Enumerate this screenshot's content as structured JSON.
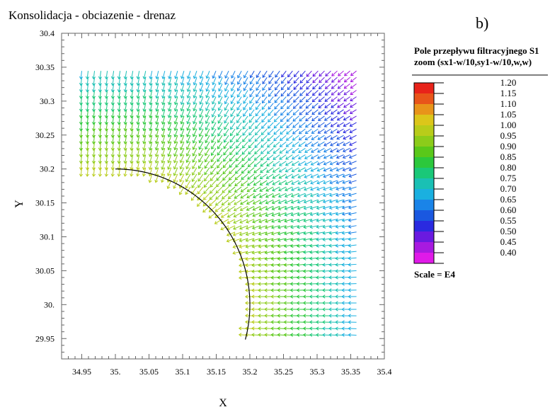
{
  "header": {
    "title": "Konsolidacja - obciazenie - drenaz",
    "panel_label": "b)"
  },
  "legend": {
    "title_line1": "Pole przepływu filtracyjnego S1",
    "title_line2": "zoom (sx1-w/10,sy1-w/10,w,w)",
    "levels": [
      "1.20",
      "1.15",
      "1.10",
      "1.05",
      "1.00",
      "0.95",
      "0.90",
      "0.85",
      "0.80",
      "0.75",
      "0.70",
      "0.65",
      "0.60",
      "0.55",
      "0.50",
      "0.45",
      "0.40"
    ],
    "colors": [
      "#e8231a",
      "#e8551a",
      "#e8941a",
      "#dcc61a",
      "#b8cc1a",
      "#8ccc1a",
      "#5ac81a",
      "#2cc83c",
      "#1ac878",
      "#1ac0b4",
      "#1ab0e0",
      "#1a84e8",
      "#1a58e0",
      "#2a2ae0",
      "#6a1ae0",
      "#a81ae0",
      "#e01ae8"
    ],
    "scale_text": "Scale = E4"
  },
  "chart_data": {
    "type": "vector-field",
    "title": "Konsolidacja - obciazenie - drenaz",
    "xlabel": "X",
    "ylabel": "Y",
    "xlim": [
      34.92,
      35.4
    ],
    "ylim": [
      29.92,
      30.4
    ],
    "x_ticks": [
      "34.95",
      "35.",
      "35.05",
      "35.1",
      "35.15",
      "35.2",
      "35.25",
      "35.3",
      "35.35",
      "35.4"
    ],
    "x_tick_values": [
      34.95,
      35.0,
      35.05,
      35.1,
      35.15,
      35.2,
      35.25,
      35.3,
      35.35,
      35.4
    ],
    "y_ticks": [
      "29.95",
      "30.",
      "30.05",
      "30.1",
      "30.15",
      "30.2",
      "30.25",
      "30.3",
      "30.35",
      "30.4"
    ],
    "y_tick_values": [
      29.95,
      30.0,
      30.05,
      30.1,
      30.15,
      30.2,
      30.25,
      30.3,
      30.35,
      30.4
    ],
    "arc": {
      "center_x": 35.0,
      "center_y": 30.0,
      "radius": 0.2
    },
    "grid": {
      "x_start": 34.95,
      "x_end": 35.36,
      "y_start": 29.955,
      "y_end": 30.35,
      "spacing": 0.0095
    },
    "magnitude_range": [
      0.4,
      1.2
    ]
  }
}
